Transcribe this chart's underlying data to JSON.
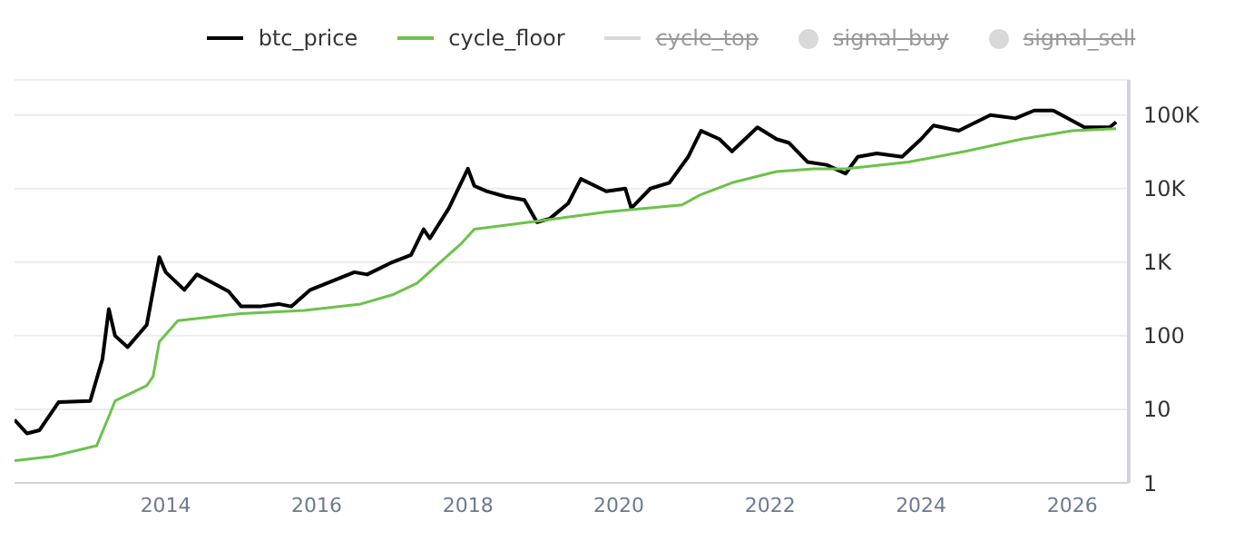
{
  "chart_data": {
    "type": "line",
    "log": "y",
    "grid": "y",
    "legend": "top",
    "marker": "none",
    "line_style": "solid",
    "xlim": [
      "2012-01",
      "2026-10"
    ],
    "xticks": [
      "2014",
      "2016",
      "2018",
      "2020",
      "2022",
      "2024",
      "2026"
    ],
    "ylim": [
      1,
      300000
    ],
    "yticks": [
      1,
      10,
      100,
      {
        "value": 1000,
        "label": "1K"
      },
      {
        "value": 10000,
        "label": "10K"
      },
      {
        "value": 100000,
        "label": "100K"
      }
    ],
    "series": [
      {
        "name": "btc_price",
        "color": "#000000",
        "x": [
          "2012-01",
          "2012-03",
          "2012-05",
          "2012-08",
          "2013-01",
          "2013-03",
          "2013-04",
          "2013-05",
          "2013-07",
          "2013-10",
          "2013-12",
          "2014-01",
          "2014-04",
          "2014-06",
          "2014-08",
          "2014-11",
          "2015-01",
          "2015-04",
          "2015-07",
          "2015-09",
          "2015-12",
          "2016-07",
          "2016-09",
          "2017-01",
          "2017-04",
          "2017-06",
          "2017-07",
          "2017-10",
          "2018-01",
          "2018-02",
          "2018-04",
          "2018-07",
          "2018-10",
          "2018-12",
          "2019-02",
          "2019-05",
          "2019-07",
          "2019-11",
          "2020-02",
          "2020-03",
          "2020-06",
          "2020-09",
          "2020-12",
          "2021-02",
          "2021-05",
          "2021-07",
          "2021-11",
          "2022-02",
          "2022-04",
          "2022-07",
          "2022-10",
          "2023-01",
          "2023-03",
          "2023-06",
          "2023-10",
          "2024-01",
          "2024-03",
          "2024-07",
          "2024-12",
          "2025-04",
          "2025-07",
          "2025-10",
          "2026-03",
          "2026-07",
          "2026-08"
        ],
        "values": [
          7.2,
          4.7,
          5.2,
          12.5,
          13,
          48,
          230,
          100,
          70,
          140,
          1170,
          730,
          420,
          680,
          550,
          400,
          250,
          250,
          270,
          250,
          420,
          730,
          680,
          1000,
          1250,
          2800,
          2100,
          5400,
          18600,
          10900,
          9200,
          7800,
          7000,
          3500,
          3900,
          6300,
          13500,
          9200,
          10000,
          5400,
          10000,
          12000,
          27000,
          61000,
          47000,
          32000,
          68000,
          47000,
          42000,
          23000,
          21000,
          16000,
          27000,
          30000,
          27000,
          47000,
          72000,
          61000,
          100000,
          90000,
          115000,
          115000,
          68000,
          68000,
          80000
        ]
      },
      {
        "name": "cycle_floor",
        "color": "#6cc24a",
        "x": [
          "2012-01",
          "2012-07",
          "2013-02",
          "2013-04",
          "2013-05",
          "2013-10",
          "2013-11",
          "2013-12",
          "2014-03",
          "2015-01",
          "2015-11",
          "2016-08",
          "2017-01",
          "2017-05",
          "2017-08",
          "2017-12",
          "2018-02",
          "2019-01",
          "2019-11",
          "2020-11",
          "2021-02",
          "2021-07",
          "2022-02",
          "2022-08",
          "2023-01",
          "2023-11",
          "2024-08",
          "2025-05",
          "2026-01",
          "2026-08"
        ],
        "values": [
          2,
          2.3,
          3.2,
          8,
          13,
          21,
          28,
          83,
          160,
          200,
          220,
          270,
          360,
          520,
          890,
          1800,
          2800,
          3700,
          4800,
          6000,
          8300,
          12000,
          17000,
          18600,
          18600,
          23000,
          32000,
          47000,
          61000,
          65000
        ]
      },
      {
        "name": "cycle_top",
        "type": "line",
        "color": "#d9d9d9"
      },
      {
        "name": "signal_buy",
        "type": "scatter",
        "color": "#d9d9d9"
      },
      {
        "name": "signal_sell",
        "type": "scatter",
        "color": "#d9d9d9"
      }
    ]
  }
}
